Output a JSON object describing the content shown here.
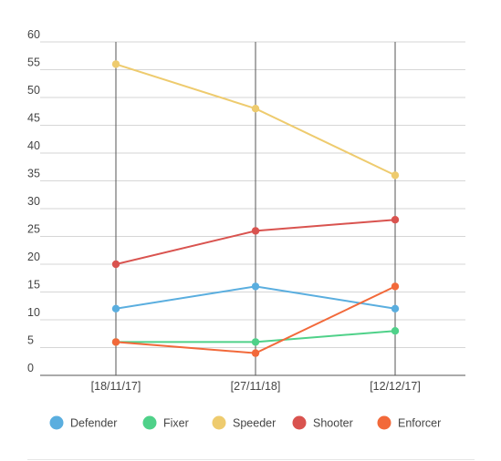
{
  "chart_data": {
    "type": "line",
    "categories": [
      "[18/11/17]",
      "[27/11/18]",
      "[12/12/17]"
    ],
    "series": [
      {
        "name": "Defender",
        "color": "#5aaedf",
        "values": [
          12,
          16,
          12
        ]
      },
      {
        "name": "Fixer",
        "color": "#4fd189",
        "values": [
          6,
          6,
          8
        ]
      },
      {
        "name": "Speeder",
        "color": "#eecb6e",
        "values": [
          56,
          48,
          36
        ]
      },
      {
        "name": "Shooter",
        "color": "#d9534f",
        "values": [
          20,
          26,
          28
        ]
      },
      {
        "name": "Enforcer",
        "color": "#f2693a",
        "values": [
          6,
          4,
          16
        ]
      }
    ],
    "yticks": [
      "0",
      "5",
      "10",
      "15",
      "20",
      "25",
      "30",
      "35",
      "40",
      "45",
      "50",
      "55",
      "60"
    ],
    "ylim": [
      0,
      60
    ],
    "grid": true,
    "legend": "bottom"
  }
}
